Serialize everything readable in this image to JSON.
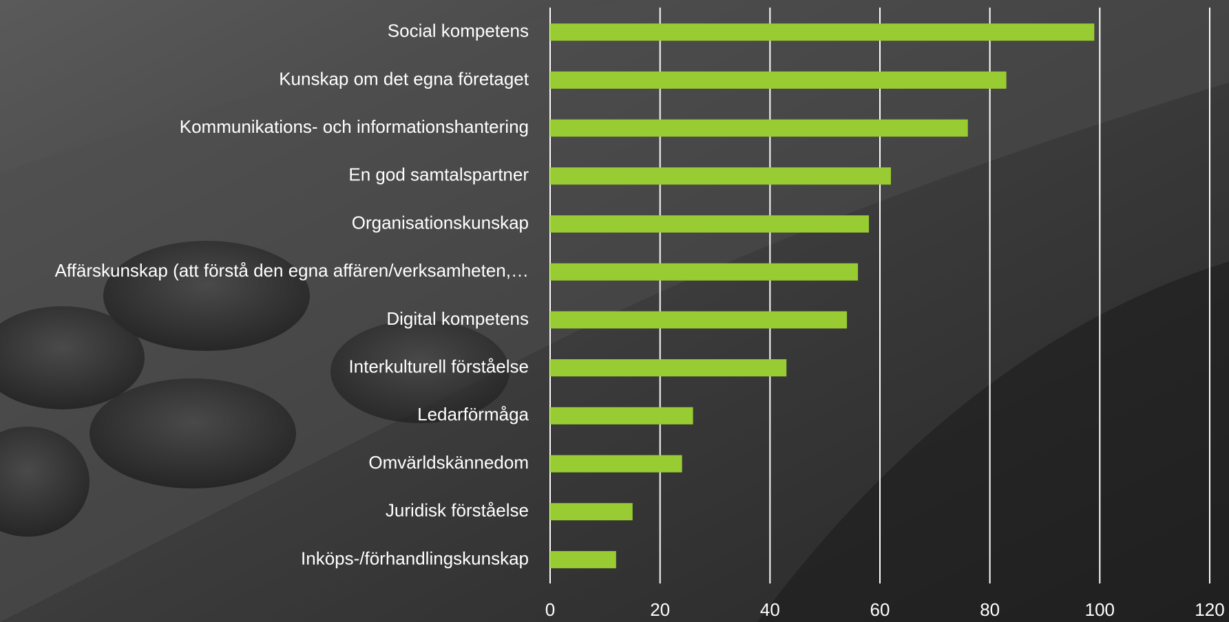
{
  "chart_data": {
    "type": "bar",
    "orientation": "horizontal",
    "categories": [
      "Social kompetens",
      "Kunskap om det egna företaget",
      "Kommunikations- och informationshantering",
      "En god samtalspartner",
      "Organisationskunskap",
      "Affärskunskap (att förstå den egna affären/verksamheten,…",
      "Digital kompetens",
      "Interkulturell förståelse",
      "Ledarförmåga",
      "Omvärldskännedom",
      "Juridisk förståelse",
      "Inköps-/förhandlingskunskap"
    ],
    "values": [
      99,
      83,
      76,
      62,
      58,
      56,
      54,
      43,
      26,
      24,
      15,
      12
    ],
    "color": "#99cc33",
    "xlim": [
      0,
      120
    ],
    "xticks": [
      0,
      20,
      40,
      60,
      80,
      100,
      120
    ],
    "grid": true
  }
}
